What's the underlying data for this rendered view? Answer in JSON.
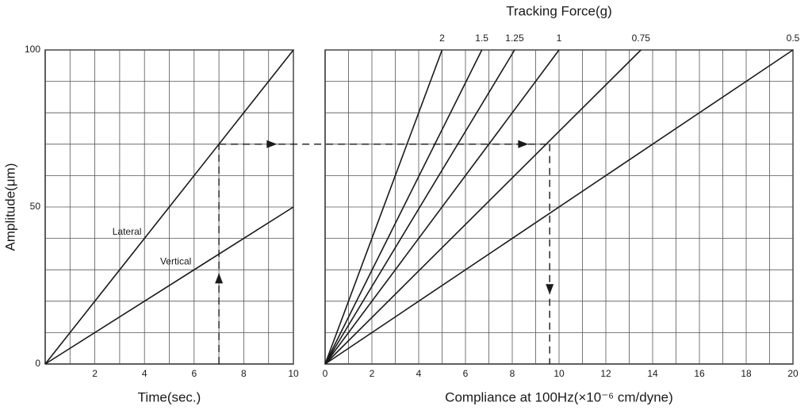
{
  "chart_data": [
    {
      "type": "line",
      "x_label": "Time(sec.)",
      "y_label": "Amplitude(μm)",
      "xlim": [
        0,
        10
      ],
      "ylim": [
        0,
        100
      ],
      "xticks": [
        2,
        4,
        6,
        8,
        10
      ],
      "yticks": [
        0,
        50,
        100
      ],
      "xgrid": [
        1,
        2,
        3,
        4,
        5,
        6,
        7,
        8,
        9,
        10
      ],
      "ygrid": [
        10,
        20,
        30,
        40,
        50,
        60,
        70,
        80,
        90,
        100
      ],
      "series_label_position": "along-line",
      "series": [
        {
          "name": "Lateral",
          "color": "#1a1a1a",
          "x": [
            0,
            10
          ],
          "values": [
            0,
            100
          ]
        },
        {
          "name": "Vertical",
          "color": "#1a1a1a",
          "x": [
            0,
            10
          ],
          "values": [
            0,
            50
          ]
        }
      ],
      "guide": {
        "x": 7,
        "y": 70
      }
    },
    {
      "type": "line",
      "title": "Tracking Force(g)",
      "x_label": "Compliance at 100Hz(×10⁻⁶ cm/dyne)",
      "xlim": [
        0,
        20
      ],
      "ylim": [
        0,
        100
      ],
      "xticks": [
        0,
        2,
        4,
        6,
        8,
        10,
        12,
        14,
        16,
        18,
        20
      ],
      "xgrid": [
        1,
        2,
        3,
        4,
        5,
        6,
        7,
        8,
        9,
        10,
        11,
        12,
        13,
        14,
        15,
        16,
        17,
        18,
        19,
        20
      ],
      "ygrid": [
        10,
        20,
        30,
        40,
        50,
        60,
        70,
        80,
        90,
        100
      ],
      "series_label_position": "top",
      "series": [
        {
          "name": "2",
          "color": "#1a1a1a",
          "x": [
            0,
            5
          ],
          "values": [
            0,
            100
          ]
        },
        {
          "name": "1.5",
          "color": "#1a1a1a",
          "x": [
            0,
            6.7
          ],
          "values": [
            0,
            100
          ]
        },
        {
          "name": "1.25",
          "color": "#1a1a1a",
          "x": [
            0,
            8.1
          ],
          "values": [
            0,
            100
          ]
        },
        {
          "name": "1",
          "color": "#1a1a1a",
          "x": [
            0,
            10
          ],
          "values": [
            0,
            100
          ]
        },
        {
          "name": "0.75",
          "color": "#1a1a1a",
          "x": [
            0,
            13.5
          ],
          "values": [
            0,
            100
          ]
        },
        {
          "name": "0.5",
          "color": "#1a1a1a",
          "x": [
            0,
            20
          ],
          "values": [
            0,
            100
          ]
        }
      ],
      "guide": {
        "x": 9.6,
        "y": 70
      }
    }
  ]
}
